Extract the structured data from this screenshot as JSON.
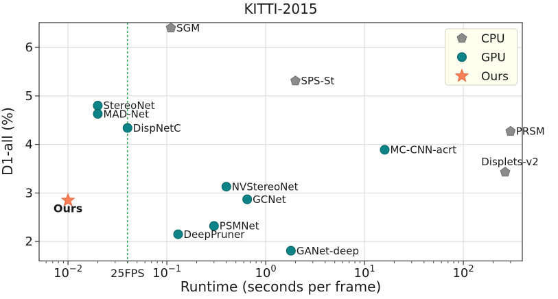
{
  "figure": {
    "title": "KITTI-2015"
  },
  "chart_data": {
    "type": "scatter",
    "title": "KITTI-2015",
    "xlabel": "Runtime (seconds per frame)",
    "ylabel": "D1-all (%)",
    "x_scale": "log",
    "y_scale": "linear",
    "xlim": [
      0.0051,
      395
    ],
    "ylim": [
      1.6,
      6.51
    ],
    "grid": true,
    "legend_position": "upper-right",
    "x_ticks": [
      {
        "value": 0.01,
        "label": "10^−2"
      },
      {
        "value": 0.1,
        "label": "10^−1"
      },
      {
        "value": 1,
        "label": "10^0"
      },
      {
        "value": 10,
        "label": "10^1"
      },
      {
        "value": 100,
        "label": "10^2"
      }
    ],
    "y_ticks": [
      {
        "value": 2,
        "label": "2"
      },
      {
        "value": 3,
        "label": "3"
      },
      {
        "value": 4,
        "label": "4"
      },
      {
        "value": 5,
        "label": "5"
      },
      {
        "value": 6,
        "label": "6"
      }
    ],
    "reference_line": {
      "x": 0.04,
      "label": "25FPS",
      "color": "#00a02f",
      "style": "dashed"
    },
    "series": [
      {
        "name": "CPU",
        "marker": "pentagon",
        "color": "#8b8b8b",
        "edge": "#6e6e6e",
        "points": [
          {
            "label": "SGM",
            "x": 0.11,
            "y": 6.4,
            "label_pos": "right"
          },
          {
            "label": "SPS-St",
            "x": 2.0,
            "y": 5.31,
            "label_pos": "right"
          },
          {
            "label": "PRSM",
            "x": 300,
            "y": 4.27,
            "label_pos": "right"
          },
          {
            "label": "Displets-v2",
            "x": 265,
            "y": 3.43,
            "label_pos": "above"
          }
        ]
      },
      {
        "name": "GPU",
        "marker": "circle",
        "color": "#0b8387",
        "edge": "#066063",
        "points": [
          {
            "label": "StereoNet",
            "x": 0.02,
            "y": 4.8,
            "label_pos": "right"
          },
          {
            "label": "MAD-Net",
            "x": 0.02,
            "y": 4.63,
            "label_pos": "right"
          },
          {
            "label": "DispNetC",
            "x": 0.04,
            "y": 4.34,
            "label_pos": "right"
          },
          {
            "label": "MC-CNN-acrt",
            "x": 16,
            "y": 3.89,
            "label_pos": "right"
          },
          {
            "label": "NVStereoNet",
            "x": 0.4,
            "y": 3.13,
            "label_pos": "right"
          },
          {
            "label": "GCNet",
            "x": 0.65,
            "y": 2.87,
            "label_pos": "right"
          },
          {
            "label": "PSMNet",
            "x": 0.3,
            "y": 2.32,
            "label_pos": "right"
          },
          {
            "label": "DeepPruner",
            "x": 0.13,
            "y": 2.15,
            "label_pos": "right"
          },
          {
            "label": "GANet-deep",
            "x": 1.8,
            "y": 1.81,
            "label_pos": "right"
          }
        ]
      },
      {
        "name": "Ours",
        "marker": "star",
        "color": "#fb8057",
        "edge": "#e5643c",
        "points": [
          {
            "label": "Ours",
            "x": 0.01,
            "y": 2.85,
            "label_pos": "below",
            "label_bold": true
          }
        ]
      }
    ],
    "colors": {
      "grid": "#d8d8d8",
      "spine": "#333333",
      "text": "#1a1a1a",
      "legend_bg": "#fffff0",
      "legend_border": "#d2d2c0"
    }
  }
}
